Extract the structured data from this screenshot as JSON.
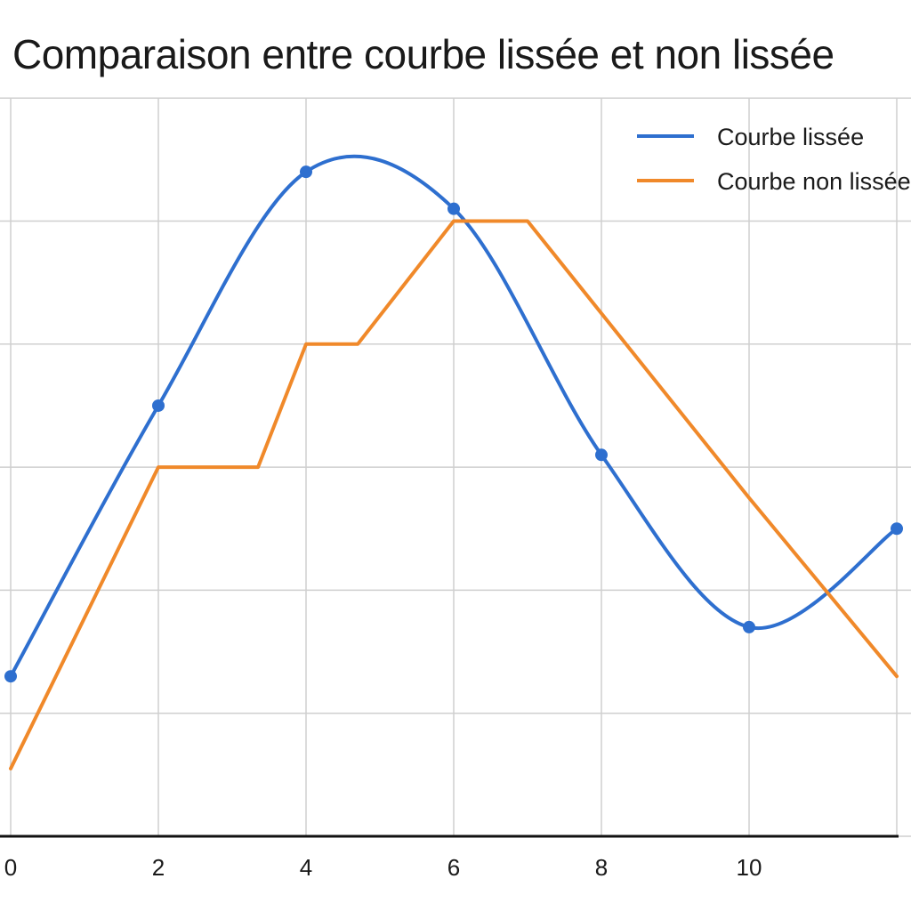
{
  "chart_data": {
    "type": "line",
    "title": "Comparaison entre courbe lissée et non lissée",
    "xlabel": "",
    "ylabel": "",
    "xlim": [
      0,
      10
    ],
    "ylim": [
      0,
      6
    ],
    "x_ticks": [
      "0",
      "2",
      "4",
      "6",
      "8",
      "10"
    ],
    "grid": true,
    "legend_position": "top-right",
    "series": [
      {
        "name": "Courbe lissée",
        "color": "#2e6fcf",
        "smooth": true,
        "markers": true,
        "x": [
          0,
          2,
          4,
          6,
          8,
          10,
          12
        ],
        "y": [
          1.3,
          3.5,
          5.4,
          5.1,
          3.1,
          1.7,
          2.5
        ]
      },
      {
        "name": "Courbe non lissée",
        "color": "#f0892a",
        "smooth": false,
        "markers": false,
        "x": [
          0,
          2,
          3.35,
          4,
          4.7,
          6,
          7,
          10,
          12
        ],
        "y": [
          0.55,
          3.0,
          3.0,
          4.0,
          4.0,
          5.0,
          5.0,
          2.75,
          1.3
        ]
      }
    ]
  }
}
